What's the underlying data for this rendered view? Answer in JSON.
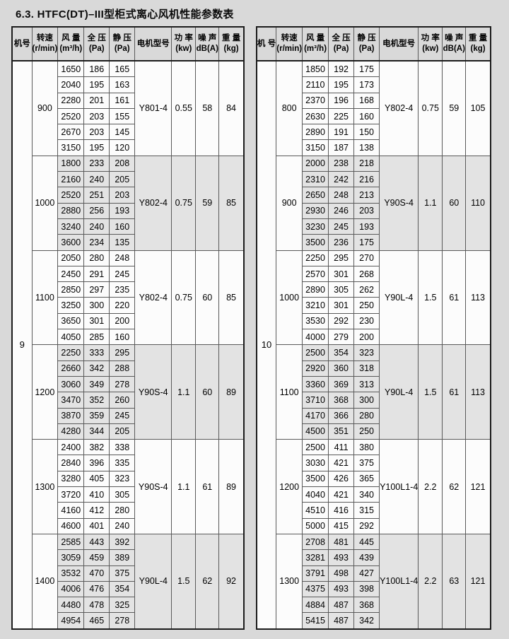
{
  "page": {
    "title": "6.3. HTFC(DT)–III型柜式离心风机性能参数表"
  },
  "colors": {
    "page_bg": "#d9d9d9",
    "header_bg": "#d9d9d9",
    "cell_bg": "#fcfcfc",
    "shaded_bg": "#e3e3e3",
    "inner_border": "#5a5a5a",
    "frame_border": "#1c1c1c",
    "text": "#000000"
  },
  "tables": [
    {
      "machine_no": "9",
      "header": [
        {
          "key": "machine",
          "label": "机号",
          "sub": ""
        },
        {
          "key": "speed",
          "label": "转速",
          "sub": "(r/min)"
        },
        {
          "key": "airflow",
          "label": "风 量",
          "sub": "(m³/h)"
        },
        {
          "key": "total_pressure",
          "label": "全 压",
          "sub": "(Pa)"
        },
        {
          "key": "static_pressure",
          "label": "静 压",
          "sub": "(Pa)"
        },
        {
          "key": "motor",
          "label": "电机型号",
          "sub": ""
        },
        {
          "key": "power",
          "label": "功 率",
          "sub": "(kw)"
        },
        {
          "key": "noise",
          "label": "噪 声",
          "sub": "dB(A)"
        },
        {
          "key": "weight",
          "label": "重 量",
          "sub": "(kg)"
        }
      ],
      "groups": [
        {
          "speed": "900",
          "shaded": false,
          "motor": "Y801-4",
          "power": "0.55",
          "noise": "58",
          "weight": "84",
          "rows": [
            [
              "1650",
              "186",
              "165"
            ],
            [
              "2040",
              "195",
              "163"
            ],
            [
              "2280",
              "201",
              "161"
            ],
            [
              "2520",
              "203",
              "155"
            ],
            [
              "2670",
              "203",
              "145"
            ],
            [
              "3150",
              "195",
              "120"
            ]
          ]
        },
        {
          "speed": "1000",
          "shaded": true,
          "motor": "Y802-4",
          "power": "0.75",
          "noise": "59",
          "weight": "85",
          "rows": [
            [
              "1800",
              "233",
              "208"
            ],
            [
              "2160",
              "240",
              "205"
            ],
            [
              "2520",
              "251",
              "203"
            ],
            [
              "2880",
              "256",
              "193"
            ],
            [
              "3240",
              "240",
              "160"
            ],
            [
              "3600",
              "234",
              "135"
            ]
          ]
        },
        {
          "speed": "1100",
          "shaded": false,
          "motor": "Y802-4",
          "power": "0.75",
          "noise": "60",
          "weight": "85",
          "rows": [
            [
              "2050",
              "280",
              "248"
            ],
            [
              "2450",
              "291",
              "245"
            ],
            [
              "2850",
              "297",
              "235"
            ],
            [
              "3250",
              "300",
              "220"
            ],
            [
              "3650",
              "301",
              "200"
            ],
            [
              "4050",
              "285",
              "160"
            ]
          ]
        },
        {
          "speed": "1200",
          "shaded": true,
          "motor": "Y90S-4",
          "power": "1.1",
          "noise": "60",
          "weight": "89",
          "rows": [
            [
              "2250",
              "333",
              "295"
            ],
            [
              "2660",
              "342",
              "288"
            ],
            [
              "3060",
              "349",
              "278"
            ],
            [
              "3470",
              "352",
              "260"
            ],
            [
              "3870",
              "359",
              "245"
            ],
            [
              "4280",
              "344",
              "205"
            ]
          ]
        },
        {
          "speed": "1300",
          "shaded": false,
          "motor": "Y90S-4",
          "power": "1.1",
          "noise": "61",
          "weight": "89",
          "rows": [
            [
              "2400",
              "382",
              "338"
            ],
            [
              "2840",
              "396",
              "335"
            ],
            [
              "3280",
              "405",
              "323"
            ],
            [
              "3720",
              "410",
              "305"
            ],
            [
              "4160",
              "412",
              "280"
            ],
            [
              "4600",
              "401",
              "240"
            ]
          ]
        },
        {
          "speed": "1400",
          "shaded": true,
          "motor": "Y90L-4",
          "power": "1.5",
          "noise": "62",
          "weight": "92",
          "rows": [
            [
              "2585",
              "443",
              "392"
            ],
            [
              "3059",
              "459",
              "389"
            ],
            [
              "3532",
              "470",
              "375"
            ],
            [
              "4006",
              "476",
              "354"
            ],
            [
              "4480",
              "478",
              "325"
            ],
            [
              "4954",
              "465",
              "278"
            ]
          ]
        }
      ]
    },
    {
      "machine_no": "10",
      "header": [
        {
          "key": "machine",
          "label": "机 号",
          "sub": ""
        },
        {
          "key": "speed",
          "label": "转速",
          "sub": "(r/min)"
        },
        {
          "key": "airflow",
          "label": "风 量",
          "sub": "(m³/h)"
        },
        {
          "key": "total_pressure",
          "label": "全 压",
          "sub": "(Pa)"
        },
        {
          "key": "static_pressure",
          "label": "静 压",
          "sub": "(Pa)"
        },
        {
          "key": "motor",
          "label": "电机型号",
          "sub": ""
        },
        {
          "key": "power",
          "label": "功 率",
          "sub": "(kw)"
        },
        {
          "key": "noise",
          "label": "噪 声",
          "sub": "dB(A)"
        },
        {
          "key": "weight",
          "label": "重 量",
          "sub": "(kg)"
        }
      ],
      "groups": [
        {
          "speed": "800",
          "shaded": false,
          "motor": "Y802-4",
          "power": "0.75",
          "noise": "59",
          "weight": "105",
          "rows": [
            [
              "1850",
              "192",
              "175"
            ],
            [
              "2110",
              "195",
              "173"
            ],
            [
              "2370",
              "196",
              "168"
            ],
            [
              "2630",
              "225",
              "160"
            ],
            [
              "2890",
              "191",
              "150"
            ],
            [
              "3150",
              "187",
              "138"
            ]
          ]
        },
        {
          "speed": "900",
          "shaded": true,
          "motor": "Y90S-4",
          "power": "1.1",
          "noise": "60",
          "weight": "110",
          "rows": [
            [
              "2000",
              "238",
              "218"
            ],
            [
              "2310",
              "242",
              "216"
            ],
            [
              "2650",
              "248",
              "213"
            ],
            [
              "2930",
              "246",
              "203"
            ],
            [
              "3230",
              "245",
              "193"
            ],
            [
              "3500",
              "236",
              "175"
            ]
          ]
        },
        {
          "speed": "1000",
          "shaded": false,
          "motor": "Y90L-4",
          "power": "1.5",
          "noise": "61",
          "weight": "113",
          "rows": [
            [
              "2250",
              "295",
              "270"
            ],
            [
              "2570",
              "301",
              "268"
            ],
            [
              "2890",
              "305",
              "262"
            ],
            [
              "3210",
              "301",
              "250"
            ],
            [
              "3530",
              "292",
              "230"
            ],
            [
              "4000",
              "279",
              "200"
            ]
          ]
        },
        {
          "speed": "1100",
          "shaded": true,
          "motor": "Y90L-4",
          "power": "1.5",
          "noise": "61",
          "weight": "113",
          "rows": [
            [
              "2500",
              "354",
              "323"
            ],
            [
              "2920",
              "360",
              "318"
            ],
            [
              "3360",
              "369",
              "313"
            ],
            [
              "3710",
              "368",
              "300"
            ],
            [
              "4170",
              "366",
              "280"
            ],
            [
              "4500",
              "351",
              "250"
            ]
          ]
        },
        {
          "speed": "1200",
          "shaded": false,
          "motor": "Y100L1-4",
          "power": "2.2",
          "noise": "62",
          "weight": "121",
          "rows": [
            [
              "2500",
              "411",
              "380"
            ],
            [
              "3030",
              "421",
              "375"
            ],
            [
              "3500",
              "426",
              "365"
            ],
            [
              "4040",
              "421",
              "340"
            ],
            [
              "4510",
              "416",
              "315"
            ],
            [
              "5000",
              "415",
              "292"
            ]
          ]
        },
        {
          "speed": "1300",
          "shaded": true,
          "motor": "Y100L1-4",
          "power": "2.2",
          "noise": "63",
          "weight": "121",
          "rows": [
            [
              "2708",
              "481",
              "445"
            ],
            [
              "3281",
              "493",
              "439"
            ],
            [
              "3791",
              "498",
              "427"
            ],
            [
              "4375",
              "493",
              "398"
            ],
            [
              "4884",
              "487",
              "368"
            ],
            [
              "5415",
              "487",
              "342"
            ]
          ]
        }
      ]
    }
  ]
}
